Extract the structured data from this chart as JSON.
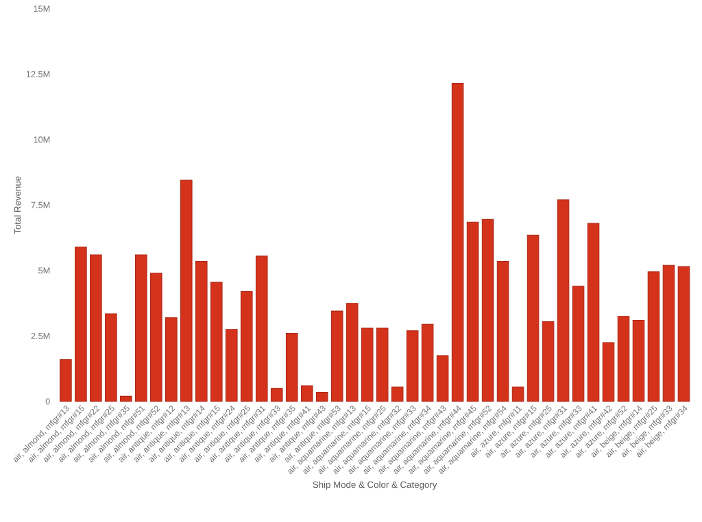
{
  "chart_data": {
    "type": "bar",
    "xlabel": "Ship Mode & Color & Category",
    "ylabel": "Total Revenue",
    "categories": [
      "air, almond, mfgr#13",
      "air, almond, mfgr#15",
      "air, almond, mfgr#22",
      "air, almond, mfgr#25",
      "air, almond, mfgr#35",
      "air, almond, mfgr#51",
      "air, almond, mfgr#52",
      "air, antique, mfgr#12",
      "air, antique, mfgr#13",
      "air, antique, mfgr#14",
      "air, antique, mfgr#15",
      "air, antique, mfgr#24",
      "air, antique, mfgr#25",
      "air, antique, mfgr#31",
      "air, antique, mfgr#33",
      "air, antique, mfgr#35",
      "air, antique, mfgr#41",
      "air, antique, mfgr#43",
      "air, antique, mfgr#53",
      "air, aquamarine, mfgr#13",
      "air, aquamarine, mfgr#15",
      "air, aquamarine, mfgr#25",
      "air, aquamarine, mfgr#32",
      "air, aquamarine, mfgr#33",
      "air, aquamarine, mfgr#34",
      "air, aquamarine, mfgr#43",
      "air, aquamarine, mfgr#44",
      "air, aquamarine, mfgr#45",
      "air, aquamarine, mfgr#52",
      "air, aquamarine, mfgr#54",
      "air, azure, mfgr#11",
      "air, azure, mfgr#15",
      "air, azure, mfgr#25",
      "air, azure, mfgr#31",
      "air, azure, mfgr#33",
      "air, azure, mfgr#41",
      "air, azure, mfgr#42",
      "air, azure, mfgr#52",
      "air, beige, mfgr#14",
      "air, beige, mfgr#25",
      "air, beige, mfgr#33",
      "air, beige, mfgr#34"
    ],
    "values": [
      1.6,
      5.9,
      5.6,
      3.35,
      0.2,
      5.6,
      4.9,
      3.2,
      8.45,
      5.35,
      4.55,
      2.75,
      4.2,
      5.55,
      0.5,
      2.6,
      0.6,
      0.35,
      3.45,
      3.75,
      2.8,
      2.8,
      0.55,
      2.7,
      2.95,
      1.75,
      12.15,
      6.85,
      6.95,
      5.35,
      0.55,
      6.35,
      3.05,
      7.7,
      4.4,
      6.8,
      2.25,
      3.25,
      3.1,
      4.95,
      5.2,
      5.15
    ],
    "color": "#d5321c",
    "ylim": [
      0,
      15
    ],
    "yticks": [
      {
        "value": 0,
        "label": "0"
      },
      {
        "value": 2.5,
        "label": "2.5M"
      },
      {
        "value": 5,
        "label": "5M"
      },
      {
        "value": 7.5,
        "label": "7.5M"
      },
      {
        "value": 10,
        "label": "10M"
      },
      {
        "value": 12.5,
        "label": "12.5M"
      },
      {
        "value": 15,
        "label": "15M"
      }
    ]
  }
}
